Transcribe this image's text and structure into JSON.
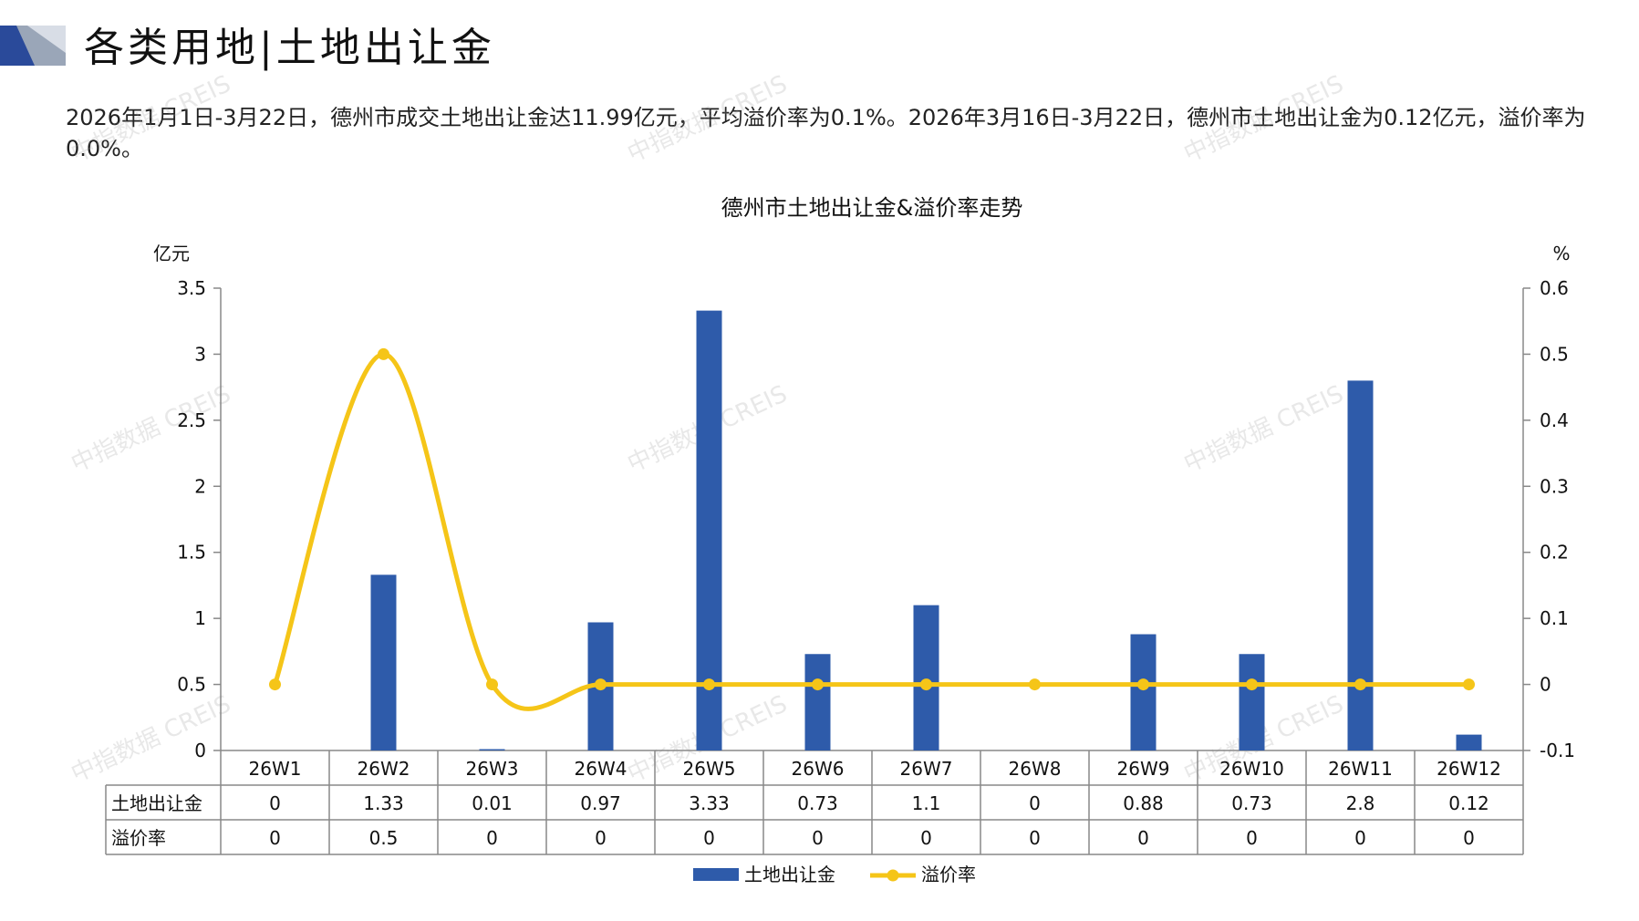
{
  "header": {
    "title": "各类用地|土地出让金",
    "accent_color": "#2A4A9A"
  },
  "summary": "2026年1月1日-3月22日，德州市成交土地出让金达11.99亿元，平均溢价率为0.1%。2026年3月16日-3月22日，德州市土地出让金为0.12亿元，溢价率为0.0%。",
  "watermark": "中指数据 CREIS",
  "chart_data": {
    "type": "bar",
    "title": "德州市土地出让金&溢价率走势",
    "y_left_unit": "亿元",
    "y_right_unit": "%",
    "categories": [
      "26W1",
      "26W2",
      "26W3",
      "26W4",
      "26W5",
      "26W6",
      "26W7",
      "26W8",
      "26W9",
      "26W10",
      "26W11",
      "26W12"
    ],
    "y_left_range": [
      0,
      3.5
    ],
    "y_left_ticks": [
      "0",
      "0.5",
      "1",
      "1.5",
      "2",
      "2.5",
      "3",
      "3.5"
    ],
    "y_right_range": [
      -0.1,
      0.6
    ],
    "y_right_ticks": [
      "-0.1",
      "0",
      "0.1",
      "0.2",
      "0.3",
      "0.4",
      "0.5",
      "0.6"
    ],
    "series": [
      {
        "name": "土地出让金",
        "kind": "bar",
        "axis": "left",
        "color": "#2E5BAA",
        "values": [
          0,
          1.33,
          0.01,
          0.97,
          3.33,
          0.73,
          1.1,
          0,
          0.88,
          0.73,
          2.8,
          0.12
        ],
        "labels": [
          "0",
          "1.33",
          "0.01",
          "0.97",
          "3.33",
          "0.73",
          "1.1",
          "0",
          "0.88",
          "0.73",
          "2.8",
          "0.12"
        ]
      },
      {
        "name": "溢价率",
        "kind": "line",
        "axis": "right",
        "color": "#F5C518",
        "values": [
          0,
          0.5,
          0,
          0,
          0,
          0,
          0,
          0,
          0,
          0,
          0,
          0
        ],
        "labels": [
          "0",
          "0.5",
          "0",
          "0",
          "0",
          "0",
          "0",
          "0",
          "0",
          "0",
          "0",
          "0"
        ]
      }
    ],
    "legend_position": "bottom",
    "grid": false
  }
}
